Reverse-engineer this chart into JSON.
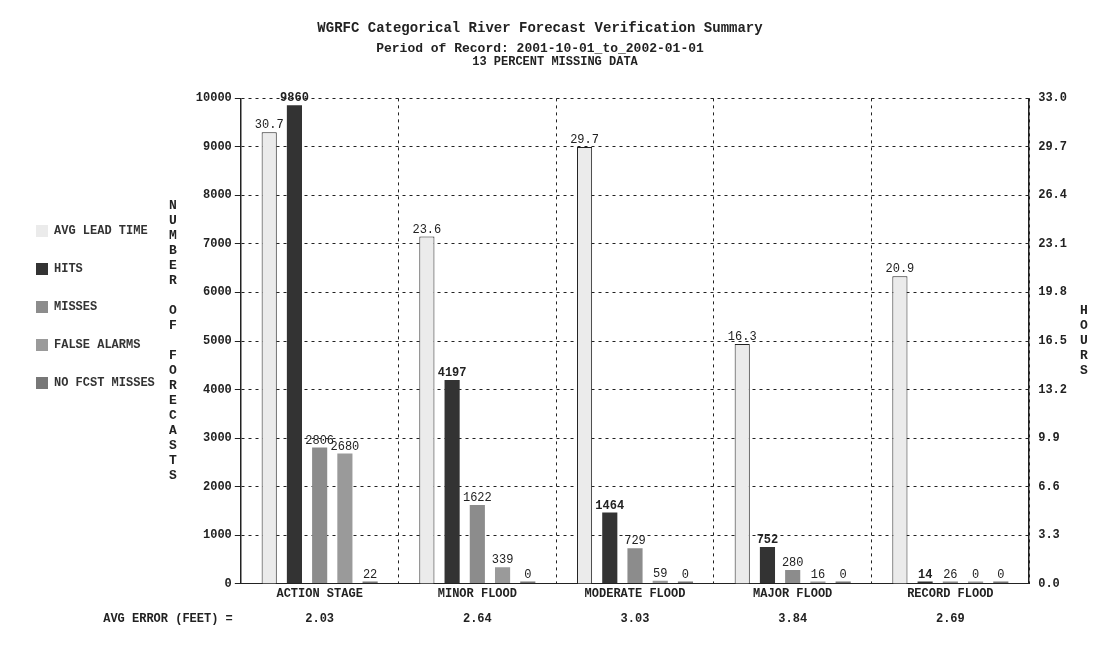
{
  "chart_data": {
    "type": "bar",
    "title": "WGRFC Categorical River Forecast Verification Summary",
    "subtitle": "Period of Record: 2001-10-01_to_2002-01-01",
    "ylabel": "NUMBER OF FORECASTS",
    "y2label": "HOURS",
    "categories": [
      "ACTION STAGE",
      "MINOR FLOOD",
      "MODERATE FLOOD",
      "MAJOR FLOOD",
      "RECORD FLOOD"
    ],
    "series": [
      {
        "name": "AVG LEAD TIME",
        "color": "#ebebeb",
        "axis": "y2",
        "values": [
          30.7,
          23.6,
          29.7,
          16.3,
          20.9
        ]
      },
      {
        "name": "HITS",
        "color": "#333333",
        "values": [
          9860,
          4197,
          1464,
          752,
          14
        ]
      },
      {
        "name": "MISSES",
        "color": "#8c8c8c",
        "values": [
          2806,
          1622,
          729,
          280,
          26
        ]
      },
      {
        "name": "FALSE ALARMS",
        "color": "#9a9a9a",
        "values": [
          2680,
          339,
          59,
          16,
          0
        ]
      },
      {
        "name": "NO FCST MISSES",
        "color": "#777777",
        "values": [
          22,
          0,
          0,
          0,
          0
        ]
      }
    ],
    "ylim": [
      0,
      10000
    ],
    "yticks": [
      0,
      1000,
      2000,
      3000,
      4000,
      5000,
      6000,
      7000,
      8000,
      9000,
      10000
    ],
    "y2lim": [
      0,
      33
    ],
    "y2ticks": [
      {
        "value": 0,
        "label": "0.0"
      },
      {
        "value": 3.3,
        "label": "3.3"
      },
      {
        "value": 6.6,
        "label": "6.6"
      },
      {
        "value": 9.9,
        "label": "9.9"
      },
      {
        "value": 13.2,
        "label": "13.2"
      },
      {
        "value": 16.5,
        "label": "16.5"
      },
      {
        "value": 19.8,
        "label": "19.8"
      },
      {
        "value": 23.1,
        "label": "23.1"
      },
      {
        "value": 26.4,
        "label": "26.4"
      },
      {
        "value": 29.7,
        "label": "29.7"
      },
      {
        "value": 33,
        "label": "33.0"
      }
    ],
    "grid": true,
    "legend": "left",
    "data_labels": true,
    "annotations": [
      "13 PERCENT MISSING DATA",
      "AVG ERROR (FEET) =",
      "2.03",
      "2.64",
      "3.03",
      "3.84",
      "2.69"
    ]
  }
}
